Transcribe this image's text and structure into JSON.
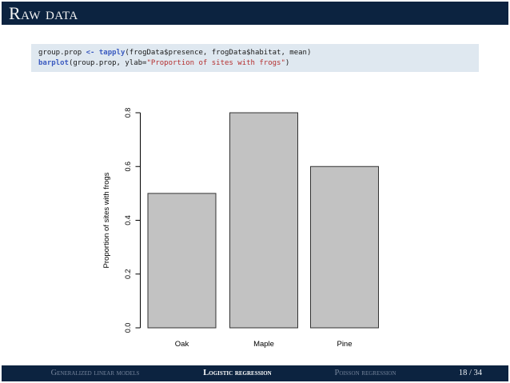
{
  "title": "Raw data",
  "code": {
    "lines": [
      [
        {
          "t": "group.prop ",
          "c": "plain"
        },
        {
          "t": "<-",
          "c": "kw"
        },
        {
          "t": " ",
          "c": "plain"
        },
        {
          "t": "tapply",
          "c": "kw"
        },
        {
          "t": "(frogData$presence, frogData$habitat, mean)",
          "c": "plain"
        }
      ],
      [
        {
          "t": "barplot",
          "c": "kw"
        },
        {
          "t": "(group.prop, ylab=",
          "c": "plain"
        },
        {
          "t": "\"Proportion of sites with frogs\"",
          "c": "str"
        },
        {
          "t": ")",
          "c": "plain"
        }
      ]
    ]
  },
  "chart_data": {
    "type": "bar",
    "categories": [
      "Oak",
      "Maple",
      "Pine"
    ],
    "values": [
      0.5,
      0.8,
      0.6
    ],
    "title": "",
    "xlabel": "",
    "ylabel": "Proportion of sites with frogs",
    "ylim": [
      0,
      0.8
    ],
    "yticks": [
      "0.0",
      "0.2",
      "0.4",
      "0.6",
      "0.8"
    ],
    "grid": false,
    "legend": "none",
    "bar_fill": "#c2c2c2",
    "bar_border": "#333333"
  },
  "footer": {
    "sections": [
      {
        "label": "Generalized linear models",
        "active": false
      },
      {
        "label": "Logistic regression",
        "active": true
      },
      {
        "label": "Poisson regression",
        "active": false
      }
    ],
    "page": "18 / 34"
  },
  "colors": {
    "navy": "#0c2340",
    "code_bg": "#dfe8f0",
    "keyword_blue": "#3b5bc0",
    "string_red": "#b52f2f",
    "footer_dim": "#76859c",
    "bar_fill": "#c2c2c2"
  }
}
